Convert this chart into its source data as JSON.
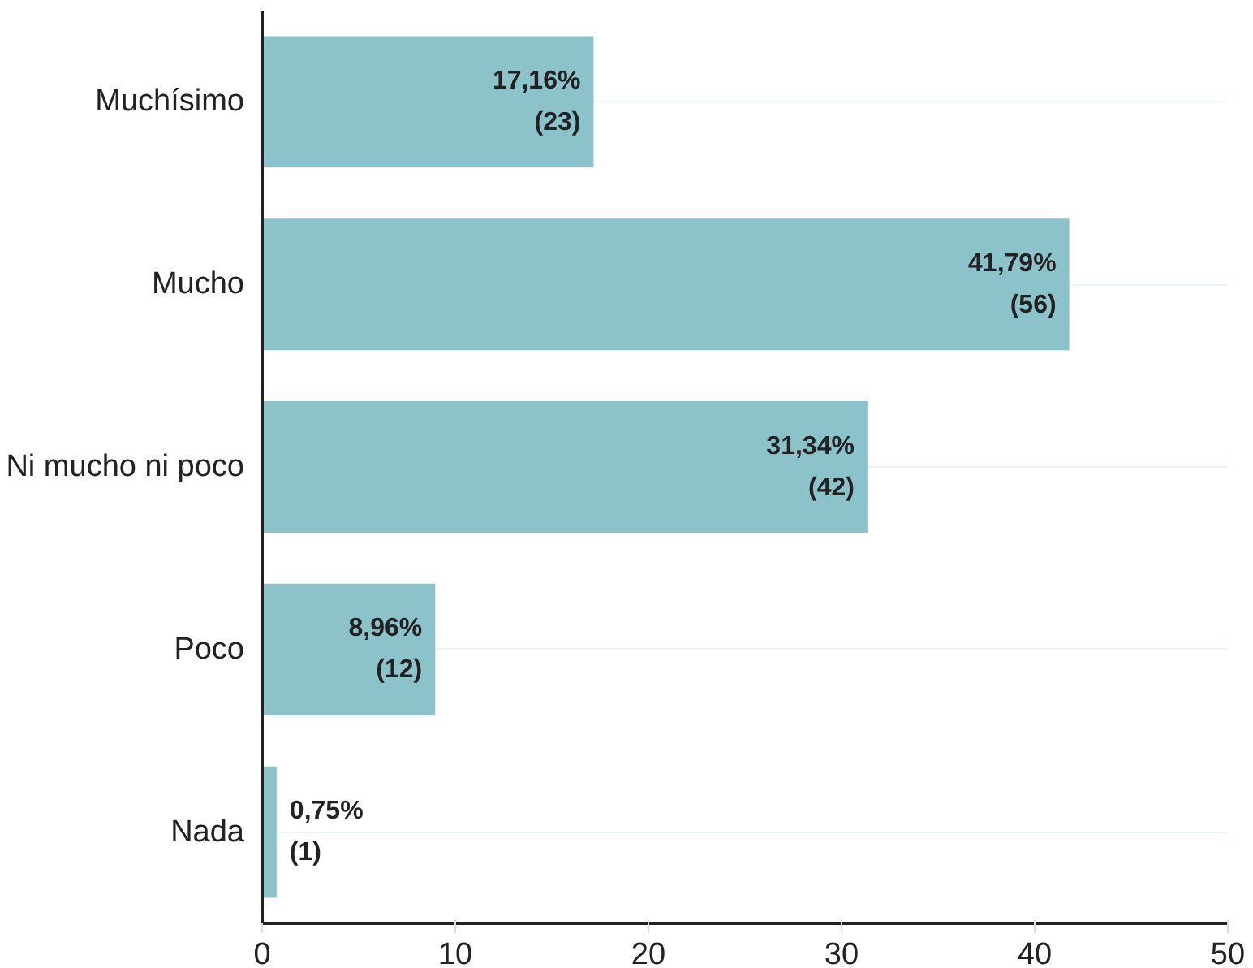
{
  "chart_data": {
    "type": "bar",
    "orientation": "horizontal",
    "categories": [
      "Muchísimo",
      "Mucho",
      "Ni mucho ni poco",
      "Poco",
      "Nada"
    ],
    "values": [
      17.16,
      41.79,
      31.34,
      8.96,
      0.75
    ],
    "value_labels": [
      "17,16%\n(23)",
      "41,79%\n(56)",
      "31,34%\n(42)",
      "8,96%\n(12)",
      "0,75%\n(1)"
    ],
    "color": "#8cc3cb",
    "xlim": [
      0,
      50
    ],
    "xticks": [
      0,
      10,
      20,
      30,
      40,
      50
    ],
    "grid": "y"
  }
}
